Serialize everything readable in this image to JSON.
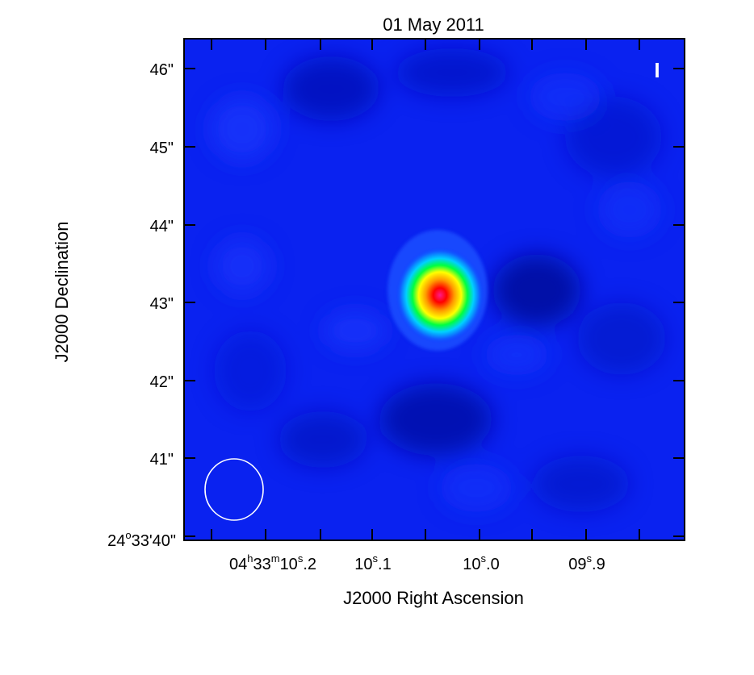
{
  "title": "01 May 2011",
  "stokes_label": "I",
  "xlabel": "J2000 Right Ascension",
  "ylabel": "J2000 Declination",
  "ra_ticks": [
    {
      "main": "04",
      "sup1": "h",
      "mid": "33",
      "sup2": "m",
      "sec": "10",
      "sup3": "s",
      "frac": ".2"
    },
    {
      "sec": "10",
      "sup3": "s",
      "frac": ".1"
    },
    {
      "sec": "10",
      "sup3": "s",
      "frac": ".0"
    },
    {
      "sec": "09",
      "sup3": "s",
      "frac": ".9"
    }
  ],
  "dec_ticks": [
    "46\"",
    "45\"",
    "44\"",
    "43\"",
    "42\"",
    "41\""
  ],
  "dec_origin": {
    "deg": "24",
    "deg_sup": "o",
    "rest": "33'40\""
  },
  "colors": {
    "background_map": "#0a22f0",
    "beam": "#ffffff",
    "frame": "#000000"
  },
  "colormap": [
    "#0000c8",
    "#1428ff",
    "#00a0ff",
    "#00ffc8",
    "#00ff00",
    "#ffff00",
    "#ff8000",
    "#ff0000",
    "#ff0080"
  ]
}
